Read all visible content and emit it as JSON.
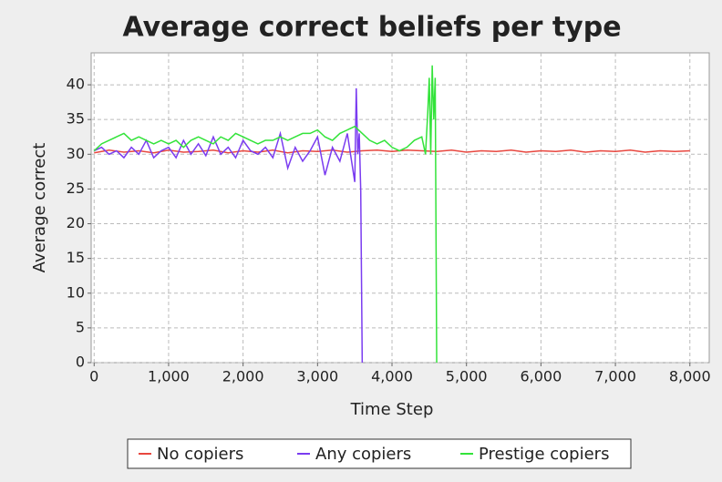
{
  "chart_data": {
    "type": "line",
    "title": "Average correct beliefs per type",
    "x_label": "Time Step",
    "y_label": "Average correct",
    "xlim": [
      -40,
      8260
    ],
    "ylim": [
      0,
      44.6
    ],
    "xticks": [
      0,
      {
        "value": 1000,
        "label": "1,000"
      },
      {
        "value": 2000,
        "label": "2,000"
      },
      {
        "value": 3000,
        "label": "3,000"
      },
      {
        "value": 4000,
        "label": "4,000"
      },
      {
        "value": 5000,
        "label": "5,000"
      },
      {
        "value": 6000,
        "label": "6,000"
      },
      {
        "value": 7000,
        "label": "7,000"
      },
      {
        "value": 8000,
        "label": "8,000"
      }
    ],
    "yticks": [
      0,
      5,
      10,
      15,
      20,
      25,
      30,
      35,
      40
    ],
    "grid": true,
    "series": [
      {
        "name": "No copiers",
        "color": "#e8473f",
        "x": [
          0,
          200,
          400,
          600,
          800,
          1000,
          1200,
          1400,
          1600,
          1800,
          2000,
          2200,
          2400,
          2600,
          2800,
          3000,
          3200,
          3400,
          3600,
          3800,
          4000,
          4200,
          4400,
          4600,
          4800,
          5000,
          5200,
          5400,
          5600,
          5800,
          6000,
          6200,
          6400,
          6600,
          6800,
          7000,
          7200,
          7400,
          7600,
          7800,
          8000
        ],
        "values": [
          30.2,
          30.6,
          30.3,
          30.5,
          30.2,
          30.6,
          30.3,
          30.4,
          30.6,
          30.2,
          30.5,
          30.3,
          30.6,
          30.2,
          30.5,
          30.4,
          30.6,
          30.3,
          30.5,
          30.6,
          30.4,
          30.6,
          30.5,
          30.4,
          30.6,
          30.3,
          30.5,
          30.4,
          30.6,
          30.3,
          30.5,
          30.4,
          30.6,
          30.3,
          30.5,
          30.4,
          30.6,
          30.3,
          30.5,
          30.4,
          30.5
        ]
      },
      {
        "name": "Any copiers",
        "color": "#7a3cf0",
        "x": [
          0,
          100,
          200,
          300,
          400,
          500,
          600,
          700,
          800,
          900,
          1000,
          1100,
          1200,
          1300,
          1400,
          1500,
          1600,
          1700,
          1800,
          1900,
          2000,
          2100,
          2200,
          2300,
          2400,
          2500,
          2600,
          2700,
          2800,
          2900,
          3000,
          3100,
          3200,
          3300,
          3400,
          3500,
          3520,
          3540,
          3560,
          3580,
          3600
        ],
        "values": [
          30.5,
          31,
          30,
          30.5,
          29.5,
          31,
          30,
          32,
          29.5,
          30.5,
          31,
          29.5,
          32,
          30,
          31.5,
          29.8,
          32.5,
          30,
          31,
          29.5,
          32,
          30.5,
          30,
          31,
          29.5,
          33,
          28,
          31,
          29,
          30.5,
          32.5,
          27,
          31,
          29,
          33,
          26,
          39.5,
          30,
          33,
          24.7,
          0
        ]
      },
      {
        "name": "Prestige copiers",
        "color": "#33e33a",
        "x": [
          0,
          100,
          200,
          300,
          400,
          500,
          600,
          700,
          800,
          900,
          1000,
          1100,
          1200,
          1300,
          1400,
          1500,
          1600,
          1700,
          1800,
          1900,
          2000,
          2100,
          2200,
          2300,
          2400,
          2500,
          2600,
          2700,
          2800,
          2900,
          3000,
          3100,
          3200,
          3300,
          3400,
          3500,
          3600,
          3700,
          3800,
          3900,
          4000,
          4100,
          4200,
          4300,
          4400,
          4450,
          4480,
          4500,
          4520,
          4540,
          4560,
          4580,
          4600
        ],
        "values": [
          30.5,
          31.5,
          32,
          32.5,
          33,
          32,
          32.5,
          32,
          31.5,
          32,
          31.5,
          32,
          31,
          32,
          32.5,
          32,
          31.5,
          32.5,
          32,
          33,
          32.5,
          32,
          31.5,
          32,
          32,
          32.5,
          32,
          32.5,
          33,
          33,
          33.5,
          32.5,
          32,
          33,
          33.5,
          34,
          33,
          32,
          31.5,
          32,
          31,
          30.5,
          31,
          32,
          32.5,
          30,
          36,
          41,
          30,
          42.8,
          35,
          41,
          0
        ]
      }
    ]
  }
}
